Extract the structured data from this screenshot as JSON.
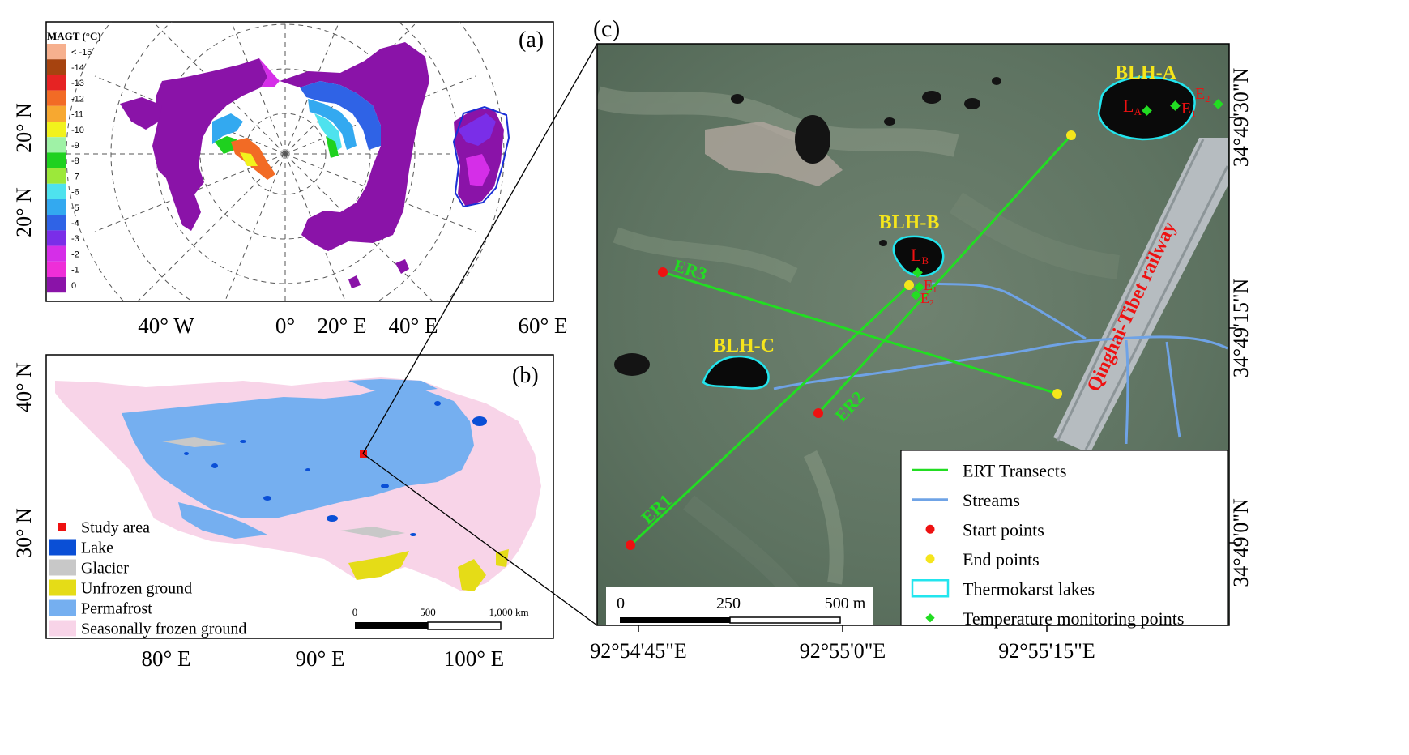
{
  "panel_a": {
    "label": "(a)",
    "legend_title": "MAGT (°C)",
    "legend": [
      {
        "label": "< -15",
        "color": "#f6b08e"
      },
      {
        "label": "-14",
        "color": "#a6430f"
      },
      {
        "label": "-13",
        "color": "#e62323"
      },
      {
        "label": "-12",
        "color": "#f26b25"
      },
      {
        "label": "-11",
        "color": "#f7a830"
      },
      {
        "label": "-10",
        "color": "#f2f21c"
      },
      {
        "label": "-9",
        "color": "#9ff2a6"
      },
      {
        "label": "-8",
        "color": "#1fd11f"
      },
      {
        "label": "-7",
        "color": "#9ce83a"
      },
      {
        "label": "-6",
        "color": "#4ee2ee"
      },
      {
        "label": "-5",
        "color": "#33a9f0"
      },
      {
        "label": "-4",
        "color": "#2f63e6"
      },
      {
        "label": "-3",
        "color": "#7a2ee8"
      },
      {
        "label": "-2",
        "color": "#d52ee8"
      },
      {
        "label": "-1",
        "color": "#ee2ed8"
      },
      {
        "label": "0",
        "color": "#8a13a8"
      }
    ],
    "lat_labels": [
      "20° N",
      "20° N"
    ],
    "lon_labels": [
      "40° W",
      "0°",
      "20° E",
      "40° E",
      "60° E"
    ]
  },
  "panel_b": {
    "label": "(b)",
    "lat_labels": [
      "40° N",
      "30° N"
    ],
    "lon_labels": [
      "80° E",
      "90° E",
      "100° E"
    ],
    "legend": [
      {
        "label": "Study area",
        "color": "#ee1111",
        "kind": "square"
      },
      {
        "label": "Lake",
        "color": "#0a4fd6",
        "kind": "box"
      },
      {
        "label": "Glacier",
        "color": "#c8c8c8",
        "kind": "box"
      },
      {
        "label": "Unfrozen ground",
        "color": "#e5dc17",
        "kind": "box"
      },
      {
        "label": "Permafrost",
        "color": "#75aff0",
        "kind": "box"
      },
      {
        "label": "Seasonally frozen ground",
        "color": "#f8d4e8",
        "kind": "box"
      }
    ],
    "scalebar": [
      "0",
      "500",
      "1,000 km"
    ]
  },
  "panel_c": {
    "label": "(c)",
    "lakes": [
      "BLH-A",
      "BLH-B",
      "BLH-C"
    ],
    "transects": [
      "ER1",
      "ER2",
      "ER3"
    ],
    "railway": "Qinghai-Tibet railway",
    "points": {
      "la": "L",
      "la_sub": "A",
      "lb": "L",
      "lb_sub": "B",
      "e1": "E",
      "e1_sub": "1",
      "e2": "E",
      "e2_sub": "2",
      "e1b": "E",
      "e1b_sub": "1",
      "e2b": "E",
      "e2b_sub": "2"
    },
    "lat_labels": [
      "34°49'30\"N",
      "34°49'15\"N",
      "34°49'0\"N"
    ],
    "lon_labels": [
      "92°54'45\"E",
      "92°55'0\"E",
      "92°55'15\"E"
    ],
    "scalebar": [
      "0",
      "250",
      "500 m"
    ],
    "legend": [
      {
        "label": "ERT Transects",
        "kind": "line",
        "color": "#22dd22"
      },
      {
        "label": "Streams",
        "kind": "line",
        "color": "#6fa3e6"
      },
      {
        "label": "Start points",
        "kind": "dot",
        "color": "#ee1111"
      },
      {
        "label": "End points",
        "kind": "dot",
        "color": "#f5e51c"
      },
      {
        "label": "Thermokarst lakes",
        "kind": "box",
        "color": "#22e5ee"
      },
      {
        "label": "Temperature monitoring points",
        "kind": "diamond",
        "color": "#22dd22"
      }
    ]
  }
}
